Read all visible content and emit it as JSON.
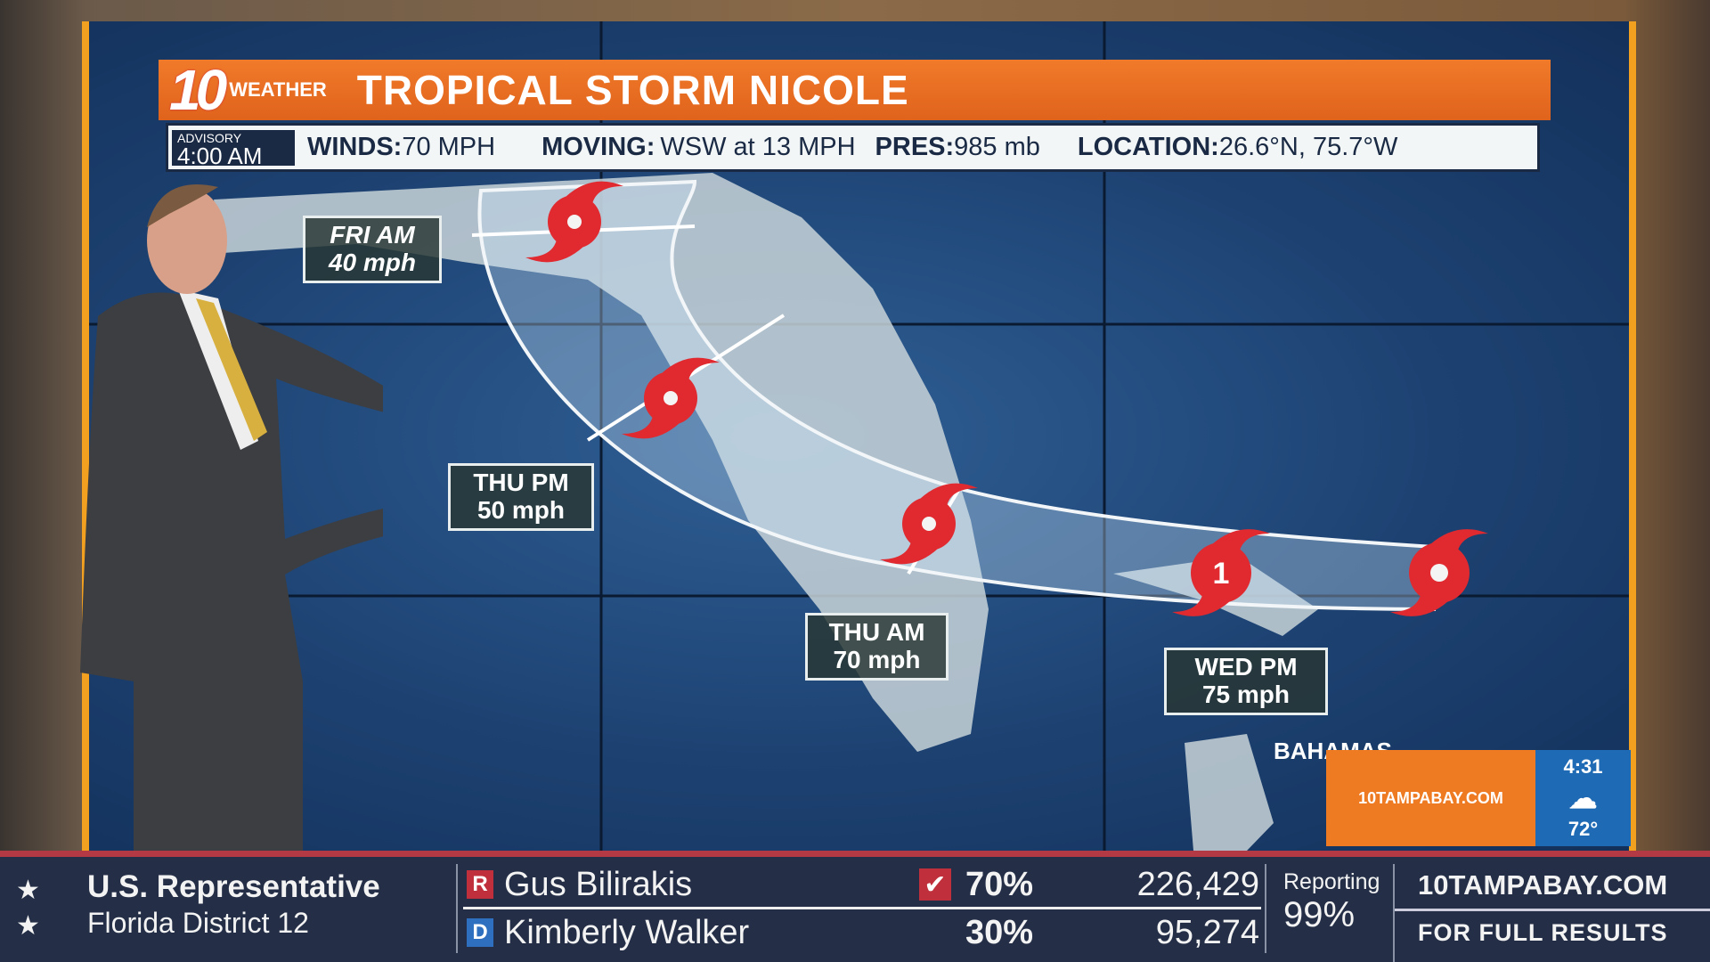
{
  "weather": {
    "logo_number": "10",
    "logo_word": "WEATHER",
    "title": "TROPICAL STORM NICOLE",
    "advisory_label": "ADVISORY",
    "advisory_time": "4:00 AM",
    "winds_label": "WINDS:",
    "winds_value": "70 MPH",
    "moving_label": "MOVING:",
    "moving_value": "WSW at 13 MPH",
    "pres_label": "PRES:",
    "pres_value": "985 mb",
    "location_label": "LOCATION:",
    "location_value": "26.6°N, 75.7°W",
    "forecast_points": [
      {
        "time": "WED PM",
        "wind": "75 mph",
        "category": "1"
      },
      {
        "time": "THU AM",
        "wind": "70 mph"
      },
      {
        "time": "THU PM",
        "wind": "50 mph"
      },
      {
        "time": "FRI AM",
        "wind": "40 mph"
      }
    ],
    "map_label": "BAHAMAS",
    "colors": {
      "title_bar": "#e86a22",
      "storm": "#e02a30",
      "map_bg": "#1d4272"
    }
  },
  "bug": {
    "site": "10TAMPABAY.COM",
    "time": "4:31",
    "temp": "72°",
    "icon": "cloud-icon"
  },
  "election": {
    "race_title": "U.S. Representative",
    "race_district": "Florida District 12",
    "candidates": [
      {
        "party": "R",
        "name": "Gus Bilirakis",
        "pct": "70%",
        "votes": "226,429",
        "winner": true,
        "color": "#c0303c"
      },
      {
        "party": "D",
        "name": "Kimberly Walker",
        "pct": "30%",
        "votes": "95,274",
        "winner": false,
        "color": "#2f6fc0"
      }
    ],
    "reporting_label": "Reporting",
    "reporting_value": "99%",
    "site": "10TAMPABAY.COM",
    "site_sub": "FOR FULL RESULTS"
  }
}
